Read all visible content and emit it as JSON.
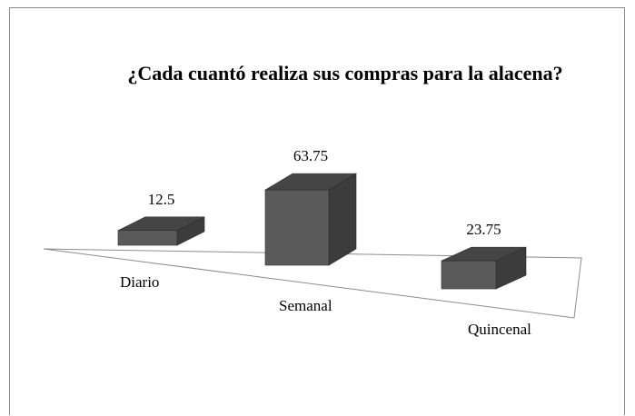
{
  "chart_data": {
    "type": "bar3d",
    "title": "¿Cada cuantó realiza sus compras para la alacena?",
    "categories": [
      "Diario",
      "Semanal",
      "Quincenal"
    ],
    "values": [
      12.5,
      63.75,
      23.75
    ],
    "color": "#5a5a5a"
  }
}
